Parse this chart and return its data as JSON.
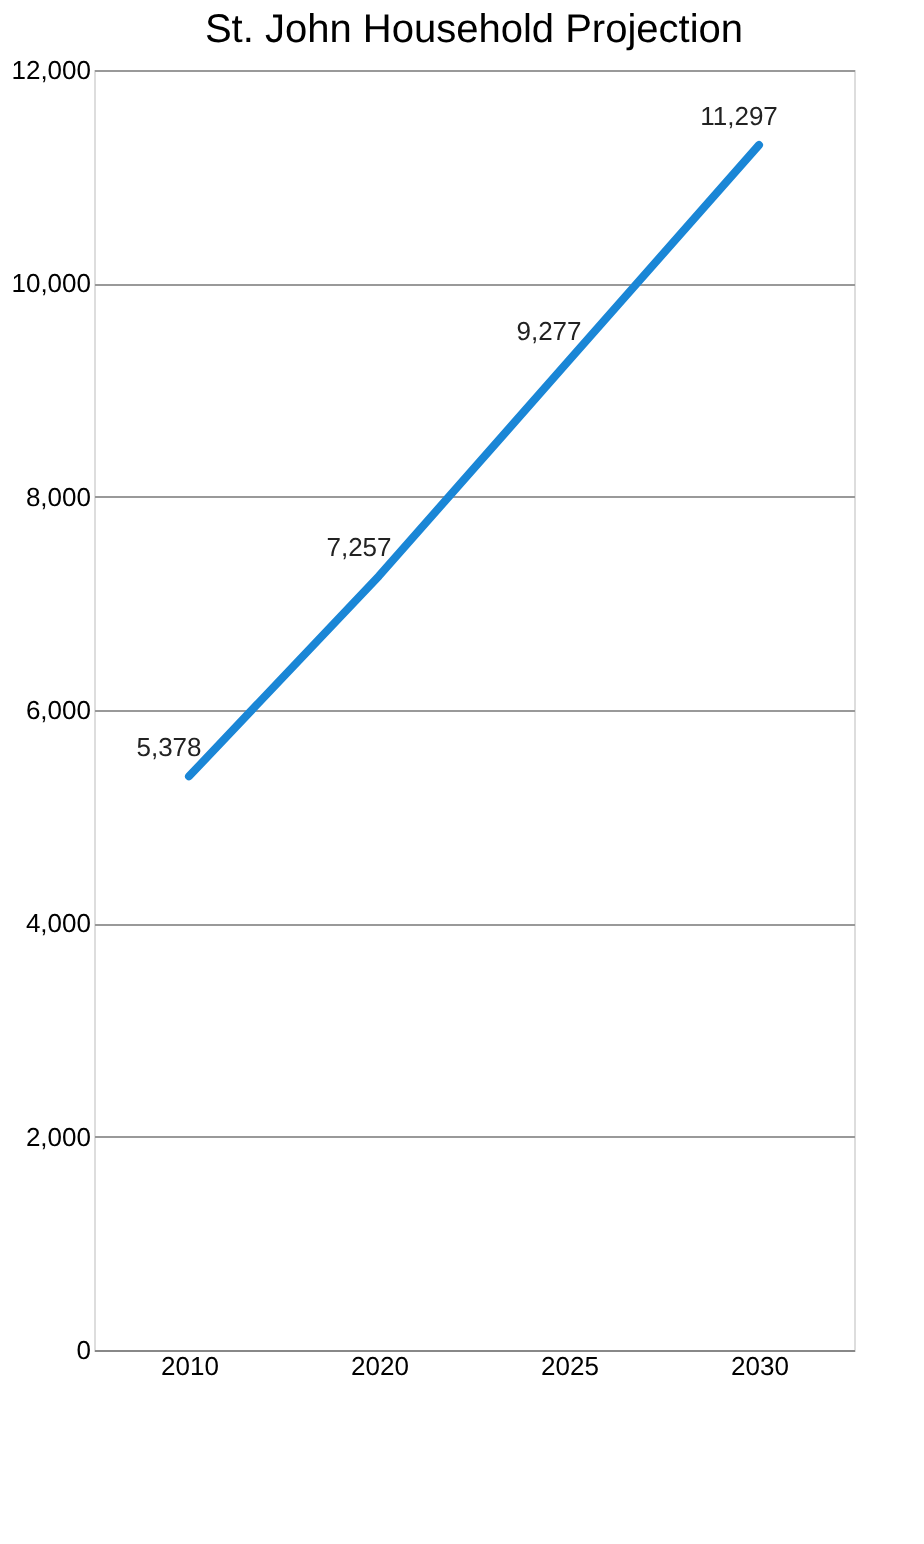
{
  "chart_data": {
    "type": "line",
    "title": "St. John Household Projection",
    "categories": [
      "2010",
      "2020",
      "2025",
      "2030"
    ],
    "series": [
      {
        "color": "#1a86d6",
        "values": [
          5378,
          7257,
          9277,
          11297
        ],
        "value_labels": [
          "5,378",
          "7,257",
          "9,277",
          "11,297"
        ]
      }
    ],
    "ylim": [
      0,
      12000
    ],
    "yticks": [
      0,
      {
        "value": 2000,
        "label": "2,000"
      },
      {
        "value": 4000,
        "label": "4,000"
      },
      {
        "value": 6000,
        "label": "6,000"
      },
      {
        "value": 8000,
        "label": "8,000"
      },
      {
        "value": 10000,
        "label": "10,000"
      },
      {
        "value": 12000,
        "label": "12,000"
      }
    ],
    "grid": "y",
    "legend": false,
    "marker": "none",
    "line_style": "solid"
  }
}
